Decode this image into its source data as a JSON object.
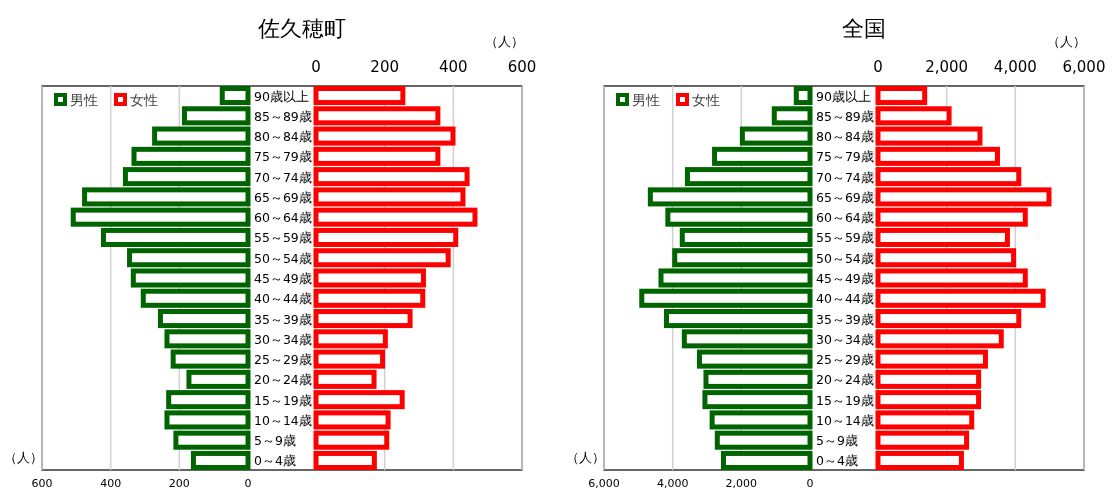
{
  "chart_data": [
    {
      "type": "bar",
      "orientation": "horizontal",
      "title": "佐久穂町",
      "categories": [
        "90歳以上",
        "85～89歳",
        "80～84歳",
        "75～79歳",
        "70～74歳",
        "65～69歳",
        "60～64歳",
        "55～59歳",
        "50～54歳",
        "45～49歳",
        "40～44歳",
        "35～39歳",
        "30～34歳",
        "25～29歳",
        "20～24歳",
        "15～19歳",
        "10～14歳",
        "5～9歳",
        "0～4歳"
      ],
      "series": [
        {
          "name": "男性",
          "color": "#006400",
          "values": [
            75,
            185,
            272,
            332,
            357,
            476,
            509,
            421,
            345,
            334,
            305,
            255,
            236,
            218,
            172,
            231,
            236,
            210,
            159
          ]
        }
      ],
      "xlim": [
        600,
        0
      ],
      "xticks": [
        600,
        400,
        200,
        0
      ],
      "xlabel": "（人）",
      "grid": "x",
      "legend": "top left"
    },
    {
      "type": "bar",
      "orientation": "horizontal",
      "categories": [
        null,
        null,
        null,
        null,
        null,
        null,
        null,
        null,
        null,
        null,
        null,
        null,
        null,
        null,
        null,
        null,
        null,
        null,
        null
      ],
      "series": [
        {
          "name": "女性",
          "color": "#ff0000",
          "values": [
            253,
            355,
            399,
            355,
            440,
            428,
            463,
            407,
            385,
            313,
            311,
            274,
            202,
            194,
            169,
            251,
            210,
            206,
            170
          ]
        }
      ],
      "xlim": [
        0,
        600
      ],
      "xticks": [
        0,
        200,
        400,
        600
      ],
      "xlabel": "（人）",
      "grid": "x",
      "legend": "top left"
    },
    {
      "type": "bar",
      "orientation": "horizontal",
      "title": "全国",
      "categories": [
        "90歳以上",
        "85～89歳",
        "80～84歳",
        "75～79歳",
        "70～74歳",
        "65～69歳",
        "60～64歳",
        "55～59歳",
        "50～54歳",
        "45～49歳",
        "40～44歳",
        "35～39歳",
        "30～34歳",
        "25～29歳",
        "20～24歳",
        "15～19歳",
        "10～14歳",
        "5～9歳",
        "0～4歳"
      ],
      "series": [
        {
          "name": "男性",
          "color": "#006400",
          "values": [
            400,
            1040,
            1970,
            2780,
            3570,
            4650,
            4140,
            3720,
            3940,
            4340,
            4900,
            4180,
            3660,
            3220,
            3030,
            3060,
            2850,
            2700,
            2520
          ]
        }
      ],
      "xlim": [
        6000,
        0
      ],
      "xticks": [
        {
          "value": 6000,
          "label": "6,000"
        },
        {
          "value": 4000,
          "label": "4,000"
        },
        {
          "value": 2000,
          "label": "2,000"
        },
        0
      ],
      "xlabel": "（人）",
      "grid": "x",
      "legend": "top left"
    },
    {
      "type": "bar",
      "orientation": "horizontal",
      "categories": [
        null,
        null,
        null,
        null,
        null,
        null,
        null,
        null,
        null,
        null,
        null,
        null,
        null,
        null,
        null,
        null,
        null,
        null,
        null
      ],
      "series": [
        {
          "name": "女性",
          "color": "#ff0000",
          "values": [
            1360,
            2070,
            2970,
            3480,
            4100,
            4980,
            4290,
            3770,
            3950,
            4290,
            4810,
            4100,
            3590,
            3130,
            2930,
            2930,
            2730,
            2580,
            2430
          ]
        }
      ],
      "xlim": [
        0,
        6000
      ],
      "xticks": [
        0,
        {
          "value": 2000,
          "label": "2,000"
        },
        {
          "value": 4000,
          "label": "4,000"
        },
        {
          "value": 6000,
          "label": "6,000"
        }
      ],
      "xlabel": "（人）",
      "grid": "x",
      "legend": "top left"
    }
  ]
}
